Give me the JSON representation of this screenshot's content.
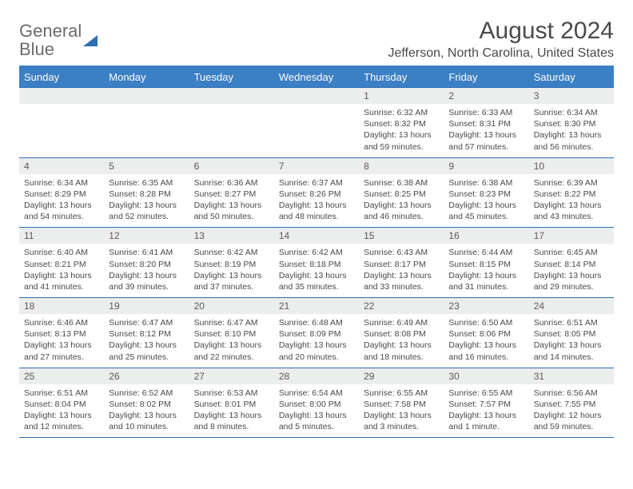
{
  "logo": {
    "word1": "General",
    "word2": "Blue"
  },
  "title": "August 2024",
  "location": "Jefferson, North Carolina, United States",
  "colors": {
    "header_bg": "#3b7fc4",
    "row_border": "#2d6fb3",
    "daynum_bg": "#eceded",
    "text": "#4a4a4a",
    "logo_gray": "#6b6b6b"
  },
  "weekdays": [
    "Sunday",
    "Monday",
    "Tuesday",
    "Wednesday",
    "Thursday",
    "Friday",
    "Saturday"
  ],
  "weeks": [
    [
      null,
      null,
      null,
      null,
      {
        "n": "1",
        "sunrise": "Sunrise: 6:32 AM",
        "sunset": "Sunset: 8:32 PM",
        "daylight": "Daylight: 13 hours and 59 minutes."
      },
      {
        "n": "2",
        "sunrise": "Sunrise: 6:33 AM",
        "sunset": "Sunset: 8:31 PM",
        "daylight": "Daylight: 13 hours and 57 minutes."
      },
      {
        "n": "3",
        "sunrise": "Sunrise: 6:34 AM",
        "sunset": "Sunset: 8:30 PM",
        "daylight": "Daylight: 13 hours and 56 minutes."
      }
    ],
    [
      {
        "n": "4",
        "sunrise": "Sunrise: 6:34 AM",
        "sunset": "Sunset: 8:29 PM",
        "daylight": "Daylight: 13 hours and 54 minutes."
      },
      {
        "n": "5",
        "sunrise": "Sunrise: 6:35 AM",
        "sunset": "Sunset: 8:28 PM",
        "daylight": "Daylight: 13 hours and 52 minutes."
      },
      {
        "n": "6",
        "sunrise": "Sunrise: 6:36 AM",
        "sunset": "Sunset: 8:27 PM",
        "daylight": "Daylight: 13 hours and 50 minutes."
      },
      {
        "n": "7",
        "sunrise": "Sunrise: 6:37 AM",
        "sunset": "Sunset: 8:26 PM",
        "daylight": "Daylight: 13 hours and 48 minutes."
      },
      {
        "n": "8",
        "sunrise": "Sunrise: 6:38 AM",
        "sunset": "Sunset: 8:25 PM",
        "daylight": "Daylight: 13 hours and 46 minutes."
      },
      {
        "n": "9",
        "sunrise": "Sunrise: 6:38 AM",
        "sunset": "Sunset: 8:23 PM",
        "daylight": "Daylight: 13 hours and 45 minutes."
      },
      {
        "n": "10",
        "sunrise": "Sunrise: 6:39 AM",
        "sunset": "Sunset: 8:22 PM",
        "daylight": "Daylight: 13 hours and 43 minutes."
      }
    ],
    [
      {
        "n": "11",
        "sunrise": "Sunrise: 6:40 AM",
        "sunset": "Sunset: 8:21 PM",
        "daylight": "Daylight: 13 hours and 41 minutes."
      },
      {
        "n": "12",
        "sunrise": "Sunrise: 6:41 AM",
        "sunset": "Sunset: 8:20 PM",
        "daylight": "Daylight: 13 hours and 39 minutes."
      },
      {
        "n": "13",
        "sunrise": "Sunrise: 6:42 AM",
        "sunset": "Sunset: 8:19 PM",
        "daylight": "Daylight: 13 hours and 37 minutes."
      },
      {
        "n": "14",
        "sunrise": "Sunrise: 6:42 AM",
        "sunset": "Sunset: 8:18 PM",
        "daylight": "Daylight: 13 hours and 35 minutes."
      },
      {
        "n": "15",
        "sunrise": "Sunrise: 6:43 AM",
        "sunset": "Sunset: 8:17 PM",
        "daylight": "Daylight: 13 hours and 33 minutes."
      },
      {
        "n": "16",
        "sunrise": "Sunrise: 6:44 AM",
        "sunset": "Sunset: 8:15 PM",
        "daylight": "Daylight: 13 hours and 31 minutes."
      },
      {
        "n": "17",
        "sunrise": "Sunrise: 6:45 AM",
        "sunset": "Sunset: 8:14 PM",
        "daylight": "Daylight: 13 hours and 29 minutes."
      }
    ],
    [
      {
        "n": "18",
        "sunrise": "Sunrise: 6:46 AM",
        "sunset": "Sunset: 8:13 PM",
        "daylight": "Daylight: 13 hours and 27 minutes."
      },
      {
        "n": "19",
        "sunrise": "Sunrise: 6:47 AM",
        "sunset": "Sunset: 8:12 PM",
        "daylight": "Daylight: 13 hours and 25 minutes."
      },
      {
        "n": "20",
        "sunrise": "Sunrise: 6:47 AM",
        "sunset": "Sunset: 8:10 PM",
        "daylight": "Daylight: 13 hours and 22 minutes."
      },
      {
        "n": "21",
        "sunrise": "Sunrise: 6:48 AM",
        "sunset": "Sunset: 8:09 PM",
        "daylight": "Daylight: 13 hours and 20 minutes."
      },
      {
        "n": "22",
        "sunrise": "Sunrise: 6:49 AM",
        "sunset": "Sunset: 8:08 PM",
        "daylight": "Daylight: 13 hours and 18 minutes."
      },
      {
        "n": "23",
        "sunrise": "Sunrise: 6:50 AM",
        "sunset": "Sunset: 8:06 PM",
        "daylight": "Daylight: 13 hours and 16 minutes."
      },
      {
        "n": "24",
        "sunrise": "Sunrise: 6:51 AM",
        "sunset": "Sunset: 8:05 PM",
        "daylight": "Daylight: 13 hours and 14 minutes."
      }
    ],
    [
      {
        "n": "25",
        "sunrise": "Sunrise: 6:51 AM",
        "sunset": "Sunset: 8:04 PM",
        "daylight": "Daylight: 13 hours and 12 minutes."
      },
      {
        "n": "26",
        "sunrise": "Sunrise: 6:52 AM",
        "sunset": "Sunset: 8:02 PM",
        "daylight": "Daylight: 13 hours and 10 minutes."
      },
      {
        "n": "27",
        "sunrise": "Sunrise: 6:53 AM",
        "sunset": "Sunset: 8:01 PM",
        "daylight": "Daylight: 13 hours and 8 minutes."
      },
      {
        "n": "28",
        "sunrise": "Sunrise: 6:54 AM",
        "sunset": "Sunset: 8:00 PM",
        "daylight": "Daylight: 13 hours and 5 minutes."
      },
      {
        "n": "29",
        "sunrise": "Sunrise: 6:55 AM",
        "sunset": "Sunset: 7:58 PM",
        "daylight": "Daylight: 13 hours and 3 minutes."
      },
      {
        "n": "30",
        "sunrise": "Sunrise: 6:55 AM",
        "sunset": "Sunset: 7:57 PM",
        "daylight": "Daylight: 13 hours and 1 minute."
      },
      {
        "n": "31",
        "sunrise": "Sunrise: 6:56 AM",
        "sunset": "Sunset: 7:55 PM",
        "daylight": "Daylight: 12 hours and 59 minutes."
      }
    ]
  ]
}
